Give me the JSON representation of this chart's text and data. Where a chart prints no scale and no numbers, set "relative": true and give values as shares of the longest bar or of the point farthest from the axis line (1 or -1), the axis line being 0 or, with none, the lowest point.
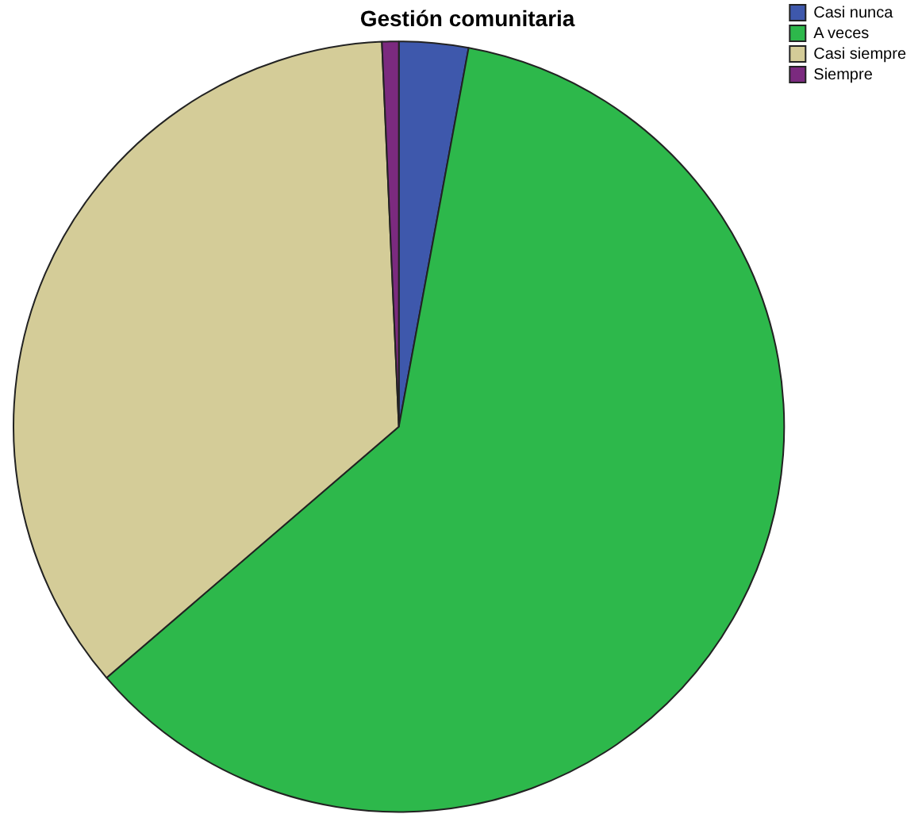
{
  "chart_data": {
    "type": "pie",
    "title": "Gestión comunitaria",
    "relative": true,
    "categories": [
      "Casi nunca",
      "A veces",
      "Casi siempre",
      "Siempre"
    ],
    "values": [
      2.9,
      60.8,
      35.6,
      0.7
    ],
    "colors": [
      "#3e58ac",
      "#2db84b",
      "#d4cc98",
      "#7b2a7f"
    ],
    "legend": "top right"
  }
}
